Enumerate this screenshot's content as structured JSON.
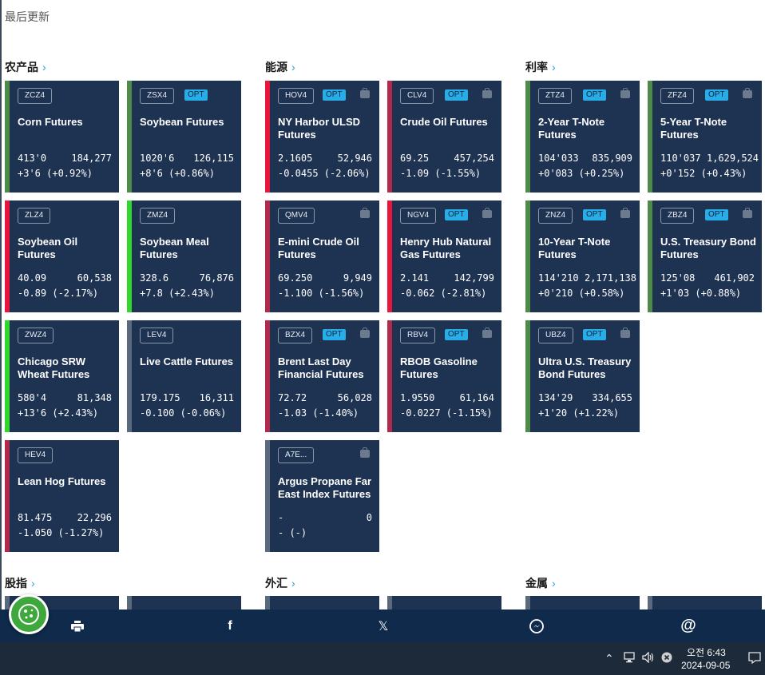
{
  "page": {
    "updated_label": "最后更新"
  },
  "colors": {
    "red": "#e8163c",
    "green": "#31d62f",
    "gray": "#5a6a7c",
    "darkgreen": "#4e8a48",
    "crimson": "#b02a4c"
  },
  "sections": {
    "agriculture": "农产品",
    "energy": "能源",
    "rates": "利率",
    "equity": "股指",
    "fx": "外汇",
    "metals": "金属"
  },
  "cards": {
    "zcz4": {
      "code": "ZCZ4",
      "name": "Corn Futures",
      "price": "413'0",
      "volume": "184,277",
      "change": "+3'6 (+0.92%)"
    },
    "zsx4": {
      "code": "ZSX4",
      "opt": "OPT",
      "name": "Soybean Futures",
      "price": "1020'6",
      "volume": "126,115",
      "change": "+8'6 (+0.86%)"
    },
    "zlz4": {
      "code": "ZLZ4",
      "name": "Soybean Oil Futures",
      "price": "40.09",
      "volume": "60,538",
      "change": "-0.89 (-2.17%)"
    },
    "zmz4": {
      "code": "ZMZ4",
      "name": "Soybean Meal Futures",
      "price": "328.6",
      "volume": "76,876",
      "change": "+7.8 (+2.43%)"
    },
    "zwz4": {
      "code": "ZWZ4",
      "name": "Chicago SRW Wheat Futures",
      "price": "580'4",
      "volume": "81,348",
      "change": "+13'6 (+2.43%)"
    },
    "lev4": {
      "code": "LEV4",
      "name": "Live Cattle Futures",
      "price": "179.175",
      "volume": "16,311",
      "change": "-0.100 (-0.06%)"
    },
    "hev4": {
      "code": "HEV4",
      "name": "Lean Hog Futures",
      "price": "81.475",
      "volume": "22,296",
      "change": "-1.050 (-1.27%)"
    },
    "hov4": {
      "code": "HOV4",
      "opt": "OPT",
      "name": "NY Harbor ULSD Futures",
      "price": "2.1605",
      "volume": "52,946",
      "change": "-0.0455 (-2.06%)"
    },
    "clv4": {
      "code": "CLV4",
      "opt": "OPT",
      "name": "Crude Oil Futures",
      "price": "69.25",
      "volume": "457,254",
      "change": "-1.09 (-1.55%)"
    },
    "qmv4": {
      "code": "QMV4",
      "name": "E-mini Crude Oil Futures",
      "price": "69.250",
      "volume": "9,949",
      "change": "-1.100 (-1.56%)"
    },
    "ngv4": {
      "code": "NGV4",
      "opt": "OPT",
      "name": "Henry Hub Natural Gas Futures",
      "price": "2.141",
      "volume": "142,799",
      "change": "-0.062 (-2.81%)"
    },
    "bzx4": {
      "code": "BZX4",
      "opt": "OPT",
      "name": "Brent Last Day Financial Futures",
      "price": "72.72",
      "volume": "56,028",
      "change": "-1.03 (-1.40%)"
    },
    "rbv4": {
      "code": "RBV4",
      "opt": "OPT",
      "name": "RBOB Gasoline Futures",
      "price": "1.9550",
      "volume": "61,164",
      "change": "-0.0227 (-1.15%)"
    },
    "a7e": {
      "code": "A7E...",
      "name": "Argus Propane Far East Index Futures",
      "price": "-",
      "volume": "0",
      "change": "- (-)"
    },
    "ztz4": {
      "code": "ZTZ4",
      "opt": "OPT",
      "name": "2-Year T-Note Futures",
      "price": "104'033",
      "volume": "835,909",
      "change": "+0'083 (+0.25%)"
    },
    "zfz4": {
      "code": "ZFZ4",
      "opt": "OPT",
      "name": "5-Year T-Note Futures",
      "price": "110'037",
      "volume": "1,629,524",
      "change": "+0'152 (+0.43%)"
    },
    "znz4": {
      "code": "ZNZ4",
      "opt": "OPT",
      "name": "10-Year T-Note Futures",
      "price": "114'210",
      "volume": "2,171,138",
      "change": "+0'210 (+0.58%)"
    },
    "zbz4": {
      "code": "ZBZ4",
      "opt": "OPT",
      "name": "U.S. Treasury Bond Futures",
      "price": "125'08",
      "volume": "461,902",
      "change": "+1'03 (+0.88%)"
    },
    "ubz4": {
      "code": "UBZ4",
      "opt": "OPT",
      "name": "Ultra U.S. Treasury Bond Futures",
      "price": "134'29",
      "volume": "334,655",
      "change": "+1'20 (+1.22%)"
    }
  },
  "share": {
    "print": "print-icon",
    "facebook": "f",
    "x": "𝕏",
    "messenger": "messenger-icon",
    "email": "@"
  },
  "taskbar": {
    "time": "오전 6:43",
    "date": "2024-09-05"
  }
}
